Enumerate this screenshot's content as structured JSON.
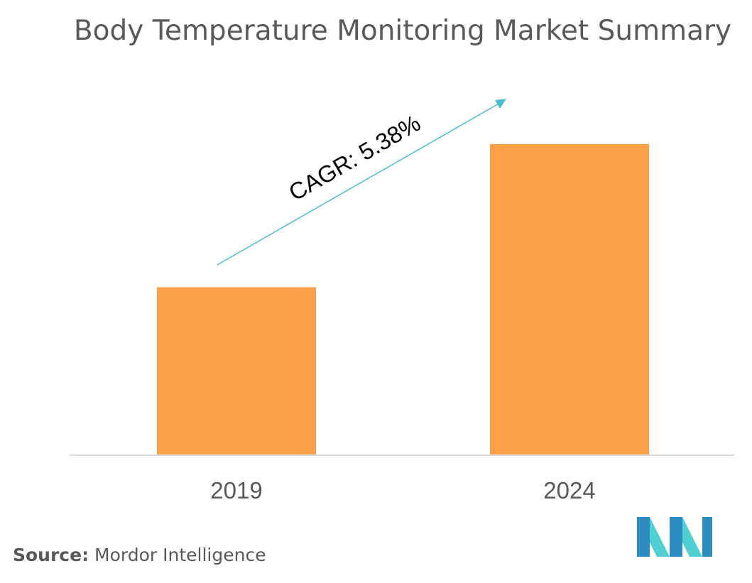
{
  "title": "Body Temperature Monitoring Market Summary",
  "annotation": "CAGR: 5.38%",
  "source": {
    "label": "Source:",
    "text": "Mordor Intelligence"
  },
  "colors": {
    "bar": "#FBA048",
    "arrow": "#4DBFCF",
    "axis": "#D9D9D9",
    "text": "#595959",
    "logo_dark": "#2E8BC0",
    "logo_light": "#4FCFD1"
  },
  "logo": {
    "icon": "mordor-intelligence-logo-icon"
  },
  "chart_data": {
    "type": "bar",
    "title": "Body Temperature Monitoring Market Summary",
    "categories": [
      "2019",
      "2024"
    ],
    "values": [
      0.54,
      1.0
    ],
    "value_note": "relative heights; no axis values printed",
    "ylim": [
      0,
      1.0
    ],
    "grid": false,
    "legend": "none",
    "annotations": [
      "CAGR: 5.38%"
    ]
  }
}
